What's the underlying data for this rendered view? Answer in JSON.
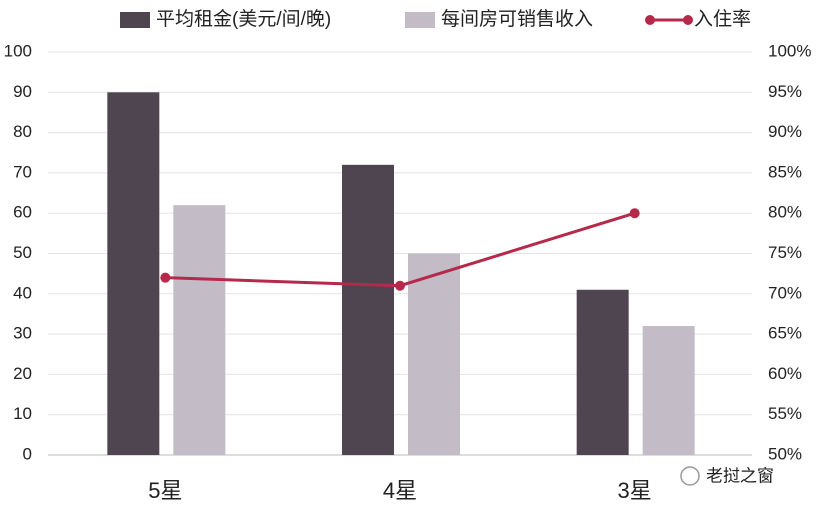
{
  "chart_data": {
    "type": "bar",
    "categories": [
      "5星",
      "4星",
      "3星"
    ],
    "series": [
      {
        "name": "平均租金(美元/间/晚)",
        "color": "#4f4550",
        "values": [
          90,
          72,
          41
        ]
      },
      {
        "name": "每间房可销售收入",
        "color": "#c3bcc6",
        "values": [
          62,
          50,
          32
        ]
      },
      {
        "name": "入住率",
        "color": "#b5294a",
        "values": [
          72,
          71,
          80
        ],
        "axis": "y2",
        "type": "line"
      }
    ],
    "ylim": [
      0,
      100
    ],
    "yticks": [
      0,
      10,
      20,
      30,
      40,
      50,
      60,
      70,
      80,
      90,
      100
    ],
    "y2lim": [
      50,
      100
    ],
    "y2ticks": [
      {
        "value": 50,
        "label": "50%"
      },
      {
        "value": 55,
        "label": "55%"
      },
      {
        "value": 60,
        "label": "60%"
      },
      {
        "value": 65,
        "label": "65%"
      },
      {
        "value": 70,
        "label": "70%"
      },
      {
        "value": 75,
        "label": "75%"
      },
      {
        "value": 80,
        "label": "80%"
      },
      {
        "value": 85,
        "label": "85%"
      },
      {
        "value": 90,
        "label": "90%"
      },
      {
        "value": 95,
        "label": "95%"
      },
      {
        "value": 100,
        "label": "100%"
      }
    ],
    "grid": true,
    "legend": "top",
    "watermark": "老挝之窗"
  }
}
